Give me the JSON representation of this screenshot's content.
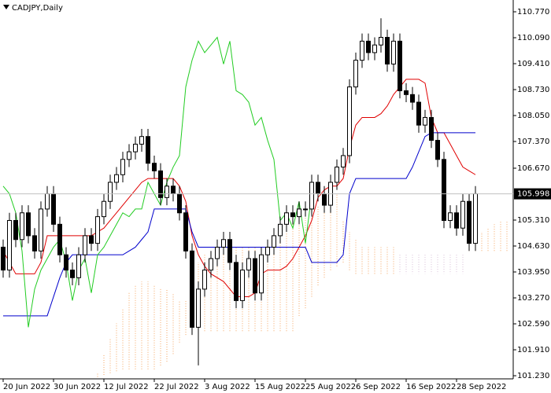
{
  "chart_data": {
    "type": "candlestick",
    "title": "CADJPY,Daily",
    "categories": [
      "20 Jun 2022",
      null,
      null,
      null,
      null,
      null,
      null,
      null,
      "30 Jun 2022",
      null,
      null,
      null,
      null,
      null,
      null,
      null,
      "12 Jul 2022",
      null,
      null,
      null,
      null,
      null,
      null,
      null,
      "22 Jul 2022",
      null,
      null,
      null,
      null,
      null,
      null,
      null,
      "3 Aug 2022",
      null,
      null,
      null,
      null,
      null,
      null,
      null,
      "15 Aug 2022",
      null,
      null,
      null,
      null,
      null,
      null,
      null,
      "25 Aug 2022",
      null,
      null,
      null,
      null,
      null,
      null,
      null,
      "6 Sep 2022",
      null,
      null,
      null,
      null,
      null,
      null,
      null,
      "16 Sep 2022",
      null,
      null,
      null,
      null,
      null,
      null,
      null,
      "28 Sep 2022",
      null,
      null,
      null,
      null,
      null,
      null,
      null,
      null
    ],
    "open": [
      104.6,
      104.0,
      105.3,
      104.8,
      105.5,
      104.9,
      104.5,
      105.6,
      106.0,
      105.2,
      104.4,
      104.0,
      103.8,
      104.4,
      104.9,
      104.7,
      105.4,
      105.8,
      106.3,
      106.5,
      106.9,
      107.1,
      107.3,
      107.5,
      106.8,
      106.6,
      105.9,
      106.2,
      106.0,
      105.5,
      104.5,
      102.5,
      103.5,
      104.0,
      104.3,
      104.6,
      104.8,
      104.2,
      103.2,
      104.0,
      104.3,
      103.4,
      104.4,
      104.6,
      104.9,
      105.2,
      105.5,
      105.4,
      105.6,
      105.6,
      106.3,
      106.0,
      105.7,
      106.3,
      106.7,
      107.0,
      108.8,
      109.5,
      110.0,
      109.7,
      109.9,
      110.1,
      109.4,
      110.0,
      108.7,
      108.6,
      108.4,
      107.8,
      108.0,
      107.4,
      106.9,
      105.3,
      105.5,
      105.1,
      105.8,
      104.7,
      null,
      null,
      null,
      null,
      null
    ],
    "high": [
      104.8,
      105.5,
      105.5,
      105.7,
      105.7,
      105.1,
      105.8,
      106.2,
      106.2,
      105.4,
      104.6,
      104.2,
      104.6,
      105.1,
      105.1,
      105.6,
      106.0,
      106.5,
      106.7,
      107.1,
      107.3,
      107.5,
      107.7,
      107.7,
      107.0,
      106.8,
      106.4,
      106.4,
      106.2,
      105.7,
      104.7,
      103.7,
      104.2,
      104.5,
      104.8,
      105.0,
      105.0,
      104.4,
      104.2,
      104.5,
      104.5,
      104.6,
      104.8,
      105.1,
      105.4,
      105.7,
      105.7,
      105.8,
      105.8,
      106.5,
      106.5,
      106.2,
      106.5,
      106.9,
      107.2,
      109.0,
      109.7,
      110.2,
      110.2,
      110.1,
      110.6,
      110.3,
      110.2,
      110.2,
      108.9,
      108.8,
      108.6,
      108.2,
      108.2,
      107.6,
      107.1,
      105.7,
      105.7,
      106.0,
      106.0,
      106.2,
      null,
      null,
      null,
      null,
      null
    ],
    "low": [
      103.8,
      103.8,
      104.6,
      104.6,
      104.7,
      104.3,
      104.3,
      105.4,
      105.0,
      104.2,
      103.8,
      103.6,
      103.6,
      104.2,
      104.5,
      104.5,
      105.2,
      105.6,
      106.1,
      106.3,
      106.7,
      106.9,
      107.1,
      106.6,
      106.4,
      105.7,
      105.7,
      105.8,
      105.3,
      104.3,
      102.3,
      101.5,
      103.3,
      103.8,
      104.1,
      104.4,
      104.0,
      103.0,
      103.0,
      103.8,
      103.2,
      103.2,
      104.2,
      104.4,
      104.7,
      105.0,
      105.2,
      105.2,
      105.4,
      105.4,
      105.8,
      105.5,
      105.5,
      106.1,
      106.5,
      106.8,
      108.6,
      109.3,
      109.5,
      109.5,
      109.7,
      109.2,
      109.2,
      108.5,
      108.4,
      108.2,
      107.6,
      107.6,
      107.2,
      106.7,
      105.1,
      105.1,
      104.9,
      104.9,
      104.5,
      104.5,
      null,
      null,
      null,
      null,
      null
    ],
    "close": [
      104.0,
      105.3,
      104.8,
      105.5,
      104.9,
      104.5,
      105.6,
      106.0,
      105.2,
      104.4,
      104.0,
      103.8,
      104.4,
      104.9,
      104.7,
      105.4,
      105.8,
      106.3,
      106.5,
      106.9,
      107.1,
      107.3,
      107.5,
      106.8,
      106.6,
      105.9,
      106.2,
      106.0,
      105.5,
      104.5,
      102.5,
      103.5,
      104.0,
      104.3,
      104.6,
      104.8,
      104.2,
      103.2,
      104.0,
      104.3,
      103.4,
      104.4,
      104.6,
      104.9,
      105.2,
      105.5,
      105.4,
      105.6,
      105.6,
      106.3,
      106.0,
      105.7,
      106.3,
      106.7,
      107.0,
      108.8,
      109.5,
      110.0,
      109.7,
      109.9,
      110.1,
      109.4,
      110.0,
      108.7,
      108.6,
      108.4,
      107.8,
      108.0,
      107.4,
      106.9,
      105.3,
      105.5,
      105.1,
      105.8,
      104.7,
      106.0,
      null,
      null,
      null,
      null,
      null
    ],
    "bull_color": "#ffffff",
    "bear_color": "#000000",
    "candle_outline": "#000000",
    "overlays": [
      {
        "color": "#e00000",
        "values": [
          104.5,
          104.2,
          103.9,
          103.9,
          103.9,
          103.9,
          104.2,
          104.9,
          104.9,
          104.9,
          104.9,
          104.9,
          104.9,
          104.9,
          104.9,
          105.0,
          105.1,
          105.3,
          105.5,
          105.7,
          105.9,
          106.1,
          106.3,
          106.4,
          106.4,
          106.4,
          106.4,
          106.4,
          106.2,
          105.8,
          104.9,
          104.4,
          104.1,
          103.9,
          103.8,
          103.7,
          103.5,
          103.3,
          103.3,
          103.3,
          103.4,
          103.9,
          104.0,
          104.0,
          104.0,
          104.1,
          104.3,
          104.6,
          104.9,
          105.3,
          105.9,
          106.1,
          106.2,
          106.2,
          106.4,
          107.2,
          107.8,
          108.0,
          108.0,
          108.0,
          108.1,
          108.3,
          108.6,
          108.8,
          109.0,
          109.0,
          109.0,
          108.9,
          108.0,
          107.6,
          107.6,
          107.3,
          107.0,
          106.7,
          106.6,
          106.5,
          null,
          null,
          null,
          null,
          null
        ]
      },
      {
        "color": "#0000cc",
        "values": [
          102.8,
          102.8,
          102.8,
          102.8,
          102.8,
          102.8,
          102.8,
          102.8,
          103.3,
          103.8,
          104.2,
          104.4,
          104.4,
          104.4,
          104.4,
          104.4,
          104.4,
          104.4,
          104.4,
          104.4,
          104.5,
          104.6,
          104.8,
          105.0,
          105.6,
          105.6,
          105.6,
          105.6,
          105.6,
          105.6,
          105.0,
          104.6,
          104.6,
          104.6,
          104.6,
          104.6,
          104.6,
          104.6,
          104.6,
          104.6,
          104.6,
          104.6,
          104.6,
          104.6,
          104.6,
          104.6,
          104.6,
          104.6,
          104.6,
          104.2,
          104.2,
          104.2,
          104.2,
          104.2,
          104.4,
          106.0,
          106.4,
          106.4,
          106.4,
          106.4,
          106.4,
          106.4,
          106.4,
          106.4,
          106.4,
          106.7,
          107.1,
          107.5,
          107.6,
          107.6,
          107.6,
          107.6,
          107.6,
          107.6,
          107.6,
          107.6,
          null,
          null,
          null,
          null,
          null
        ]
      },
      {
        "color": "#22cc22",
        "values": [
          106.2,
          106.0,
          105.5,
          104.5,
          102.5,
          103.5,
          104.0,
          104.3,
          104.6,
          104.8,
          104.2,
          103.2,
          104.0,
          104.3,
          103.4,
          104.4,
          104.6,
          104.9,
          105.2,
          105.5,
          105.4,
          105.6,
          105.6,
          106.3,
          106.0,
          105.7,
          106.3,
          106.7,
          107.0,
          108.8,
          109.5,
          110.0,
          109.7,
          109.9,
          110.1,
          109.4,
          110.0,
          108.7,
          108.6,
          108.4,
          107.8,
          108.0,
          107.4,
          106.9,
          105.3,
          105.5,
          105.1,
          105.8,
          104.7,
          106.0,
          null,
          null,
          null,
          null,
          null,
          null,
          null,
          null,
          null,
          null,
          null,
          null,
          null,
          null,
          null,
          null,
          null,
          null,
          null,
          null,
          null,
          null,
          null,
          null,
          null,
          null,
          null,
          null,
          null,
          null,
          null
        ]
      }
    ],
    "cloud": {
      "up_color": "#d8bfd8",
      "down_color": "#f4a460",
      "span_a": [
        null,
        null,
        null,
        null,
        null,
        null,
        null,
        null,
        null,
        null,
        null,
        null,
        null,
        null,
        null,
        101.2,
        101.25,
        101.3,
        101.35,
        101.4,
        101.4,
        101.4,
        101.4,
        101.4,
        101.4,
        101.5,
        101.6,
        101.8,
        102.1,
        102.3,
        102.3,
        102.4,
        102.4,
        102.4,
        102.4,
        102.4,
        102.4,
        102.4,
        102.4,
        102.4,
        102.4,
        102.4,
        102.4,
        102.4,
        102.4,
        102.4,
        102.4,
        102.8,
        103.0,
        103.3,
        103.6,
        103.8,
        104.0,
        104.1,
        104.2,
        104.0,
        103.9,
        103.9,
        103.9,
        103.9,
        103.9,
        103.9,
        103.9,
        104.4,
        104.4,
        104.4,
        104.4,
        104.4,
        104.4,
        104.4,
        104.4,
        104.4,
        104.4,
        104.4,
        104.5,
        104.5,
        104.5,
        104.5,
        104.5,
        104.5,
        104.5
      ],
      "span_b": [
        null,
        null,
        null,
        null,
        null,
        null,
        null,
        null,
        null,
        null,
        null,
        null,
        null,
        null,
        null,
        101.3,
        101.8,
        102.2,
        102.6,
        103.0,
        103.4,
        103.6,
        103.7,
        103.7,
        103.6,
        103.5,
        103.5,
        103.4,
        103.2,
        103.2,
        103.9,
        104.2,
        104.4,
        104.5,
        104.6,
        104.6,
        104.6,
        104.6,
        104.6,
        104.6,
        104.6,
        104.6,
        104.6,
        104.6,
        104.7,
        105.0,
        105.3,
        105.4,
        105.4,
        105.6,
        105.7,
        105.9,
        106.0,
        106.0,
        105.3,
        105.0,
        104.8,
        104.6,
        104.6,
        104.6,
        104.6,
        104.6,
        104.6,
        103.9,
        103.9,
        103.9,
        103.9,
        103.9,
        103.9,
        103.9,
        103.9,
        103.9,
        103.9,
        103.9,
        104.8,
        104.9,
        105.0,
        105.1,
        105.2,
        105.3,
        105.3
      ]
    },
    "last_price": 105.998,
    "ylim": [
      101.148,
      111.079
    ],
    "yticks": [
      {
        "value": 110.77,
        "label": "110.770"
      },
      {
        "value": 110.09,
        "label": "110.090"
      },
      {
        "value": 109.41,
        "label": "109.410"
      },
      {
        "value": 108.73,
        "label": "108.730"
      },
      {
        "value": 108.05,
        "label": "108.050"
      },
      {
        "value": 107.37,
        "label": "107.370"
      },
      {
        "value": 106.67,
        "label": "106.670"
      },
      {
        "value": 105.31,
        "label": "105.310"
      },
      {
        "value": 104.63,
        "label": "104.630"
      },
      {
        "value": 103.95,
        "label": "103.950"
      },
      {
        "value": 103.27,
        "label": "103.270"
      },
      {
        "value": 102.59,
        "label": "102.590"
      },
      {
        "value": 101.91,
        "label": "101.910"
      },
      {
        "value": 101.23,
        "label": "101.230"
      }
    ],
    "grid": false
  }
}
